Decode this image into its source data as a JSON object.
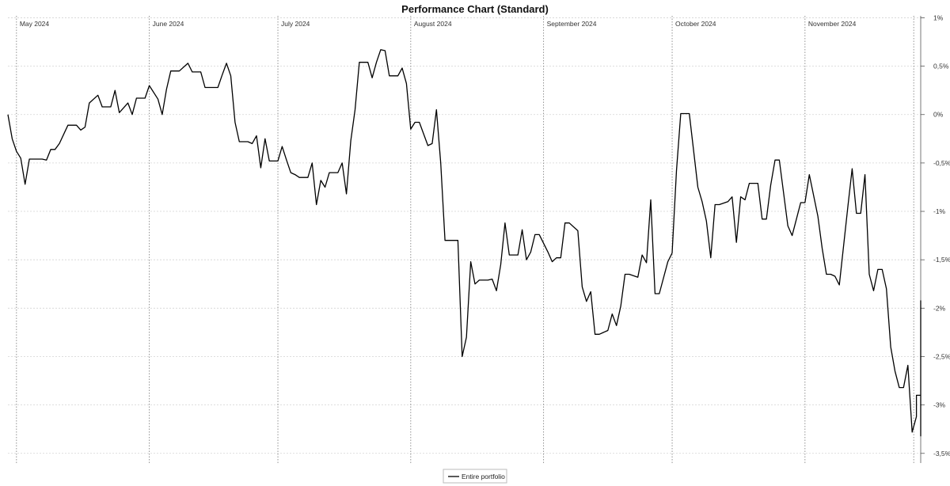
{
  "chart_data": {
    "type": "line",
    "title": "Performance Chart (Standard)",
    "xlabel": "",
    "ylabel": "",
    "x_range": [
      "2024-04-29",
      "2024-11-28"
    ],
    "ylim": [
      -3.6,
      1.02
    ],
    "y_ticks": [
      {
        "value": 1,
        "label": "1%"
      },
      {
        "value": 0.5,
        "label": "0,5%"
      },
      {
        "value": 0,
        "label": "0%"
      },
      {
        "value": -0.5,
        "label": "-0,5%"
      },
      {
        "value": -1,
        "label": "-1%"
      },
      {
        "value": -1.5,
        "label": "-1,5%"
      },
      {
        "value": -2,
        "label": "-2%"
      },
      {
        "value": -2.5,
        "label": "-2,5%"
      },
      {
        "value": -3,
        "label": "-3%"
      },
      {
        "value": -3.5,
        "label": "-3,5%"
      }
    ],
    "month_markers": [
      {
        "date": "2024-05-01",
        "label": "May 2024"
      },
      {
        "date": "2024-06-01",
        "label": "June 2024"
      },
      {
        "date": "2024-07-01",
        "label": "July 2024"
      },
      {
        "date": "2024-08-01",
        "label": "August 2024"
      },
      {
        "date": "2024-09-01",
        "label": "September 2024"
      },
      {
        "date": "2024-10-01",
        "label": "October 2024"
      },
      {
        "date": "2024-11-01",
        "label": "November 2024"
      }
    ],
    "grid": true,
    "legend_position": "bottom-center",
    "series": [
      {
        "name": "Entire portfolio",
        "color": "#000000",
        "points": [
          [
            "2024-04-29",
            0.0
          ],
          [
            "2024-04-30",
            -0.25
          ],
          [
            "2024-05-01",
            -0.38
          ],
          [
            "2024-05-02",
            -0.45
          ],
          [
            "2024-05-03",
            -0.72
          ],
          [
            "2024-05-04",
            -0.46
          ],
          [
            "2024-05-07",
            -0.46
          ],
          [
            "2024-05-08",
            -0.47
          ],
          [
            "2024-05-09",
            -0.36
          ],
          [
            "2024-05-10",
            -0.36
          ],
          [
            "2024-05-11",
            -0.3
          ],
          [
            "2024-05-13",
            -0.11
          ],
          [
            "2024-05-14",
            -0.11
          ],
          [
            "2024-05-15",
            -0.11
          ],
          [
            "2024-05-16",
            -0.16
          ],
          [
            "2024-05-17",
            -0.13
          ],
          [
            "2024-05-18",
            0.12
          ],
          [
            "2024-05-20",
            0.2
          ],
          [
            "2024-05-21",
            0.08
          ],
          [
            "2024-05-22",
            0.08
          ],
          [
            "2024-05-23",
            0.08
          ],
          [
            "2024-05-24",
            0.25
          ],
          [
            "2024-05-25",
            0.02
          ],
          [
            "2024-05-27",
            0.12
          ],
          [
            "2024-05-28",
            0.0
          ],
          [
            "2024-05-29",
            0.17
          ],
          [
            "2024-05-30",
            0.17
          ],
          [
            "2024-05-31",
            0.17
          ],
          [
            "2024-06-01",
            0.3
          ],
          [
            "2024-06-03",
            0.16
          ],
          [
            "2024-06-04",
            0.0
          ],
          [
            "2024-06-05",
            0.26
          ],
          [
            "2024-06-06",
            0.45
          ],
          [
            "2024-06-07",
            0.45
          ],
          [
            "2024-06-08",
            0.45
          ],
          [
            "2024-06-10",
            0.53
          ],
          [
            "2024-06-11",
            0.44
          ],
          [
            "2024-06-12",
            0.44
          ],
          [
            "2024-06-13",
            0.44
          ],
          [
            "2024-06-14",
            0.28
          ],
          [
            "2024-06-15",
            0.28
          ],
          [
            "2024-06-17",
            0.28
          ],
          [
            "2024-06-18",
            0.41
          ],
          [
            "2024-06-19",
            0.53
          ],
          [
            "2024-06-20",
            0.4
          ],
          [
            "2024-06-21",
            -0.08
          ],
          [
            "2024-06-22",
            -0.28
          ],
          [
            "2024-06-24",
            -0.28
          ],
          [
            "2024-06-25",
            -0.3
          ],
          [
            "2024-06-26",
            -0.22
          ],
          [
            "2024-06-27",
            -0.55
          ],
          [
            "2024-06-28",
            -0.25
          ],
          [
            "2024-06-29",
            -0.48
          ],
          [
            "2024-07-01",
            -0.48
          ],
          [
            "2024-07-02",
            -0.33
          ],
          [
            "2024-07-03",
            -0.47
          ],
          [
            "2024-07-04",
            -0.6
          ],
          [
            "2024-07-05",
            -0.62
          ],
          [
            "2024-07-06",
            -0.65
          ],
          [
            "2024-07-08",
            -0.65
          ],
          [
            "2024-07-09",
            -0.5
          ],
          [
            "2024-07-10",
            -0.93
          ],
          [
            "2024-07-11",
            -0.68
          ],
          [
            "2024-07-12",
            -0.75
          ],
          [
            "2024-07-13",
            -0.6
          ],
          [
            "2024-07-15",
            -0.6
          ],
          [
            "2024-07-16",
            -0.5
          ],
          [
            "2024-07-17",
            -0.82
          ],
          [
            "2024-07-18",
            -0.27
          ],
          [
            "2024-07-19",
            0.05
          ],
          [
            "2024-07-20",
            0.54
          ],
          [
            "2024-07-22",
            0.54
          ],
          [
            "2024-07-23",
            0.38
          ],
          [
            "2024-07-24",
            0.54
          ],
          [
            "2024-07-25",
            0.67
          ],
          [
            "2024-07-26",
            0.66
          ],
          [
            "2024-07-27",
            0.4
          ],
          [
            "2024-07-29",
            0.4
          ],
          [
            "2024-07-30",
            0.48
          ],
          [
            "2024-07-31",
            0.32
          ],
          [
            "2024-08-01",
            -0.15
          ],
          [
            "2024-08-02",
            -0.08
          ],
          [
            "2024-08-03",
            -0.08
          ],
          [
            "2024-08-05",
            -0.32
          ],
          [
            "2024-08-06",
            -0.3
          ],
          [
            "2024-08-07",
            0.05
          ],
          [
            "2024-08-08",
            -0.5
          ],
          [
            "2024-08-09",
            -1.3
          ],
          [
            "2024-08-10",
            -1.3
          ],
          [
            "2024-08-12",
            -1.3
          ],
          [
            "2024-08-13",
            -2.5
          ],
          [
            "2024-08-14",
            -2.3
          ],
          [
            "2024-08-15",
            -1.52
          ],
          [
            "2024-08-16",
            -1.75
          ],
          [
            "2024-08-17",
            -1.71
          ],
          [
            "2024-08-19",
            -1.71
          ],
          [
            "2024-08-20",
            -1.7
          ],
          [
            "2024-08-21",
            -1.82
          ],
          [
            "2024-08-22",
            -1.55
          ],
          [
            "2024-08-23",
            -1.12
          ],
          [
            "2024-08-24",
            -1.45
          ],
          [
            "2024-08-26",
            -1.45
          ],
          [
            "2024-08-27",
            -1.19
          ],
          [
            "2024-08-28",
            -1.5
          ],
          [
            "2024-08-29",
            -1.42
          ],
          [
            "2024-08-30",
            -1.24
          ],
          [
            "2024-08-31",
            -1.24
          ],
          [
            "2024-09-02",
            -1.42
          ],
          [
            "2024-09-03",
            -1.52
          ],
          [
            "2024-09-04",
            -1.48
          ],
          [
            "2024-09-05",
            -1.48
          ],
          [
            "2024-09-06",
            -1.12
          ],
          [
            "2024-09-07",
            -1.12
          ],
          [
            "2024-09-09",
            -1.2
          ],
          [
            "2024-09-10",
            -1.78
          ],
          [
            "2024-09-11",
            -1.93
          ],
          [
            "2024-09-12",
            -1.83
          ],
          [
            "2024-09-13",
            -2.27
          ],
          [
            "2024-09-14",
            -2.27
          ],
          [
            "2024-09-16",
            -2.23
          ],
          [
            "2024-09-17",
            -2.06
          ],
          [
            "2024-09-18",
            -2.18
          ],
          [
            "2024-09-19",
            -1.98
          ],
          [
            "2024-09-20",
            -1.65
          ],
          [
            "2024-09-21",
            -1.65
          ],
          [
            "2024-09-23",
            -1.68
          ],
          [
            "2024-09-24",
            -1.45
          ],
          [
            "2024-09-25",
            -1.53
          ],
          [
            "2024-09-26",
            -0.88
          ],
          [
            "2024-09-27",
            -1.85
          ],
          [
            "2024-09-28",
            -1.85
          ],
          [
            "2024-09-30",
            -1.52
          ],
          [
            "2024-10-01",
            -1.43
          ],
          [
            "2024-10-02",
            -0.58
          ],
          [
            "2024-10-03",
            0.01
          ],
          [
            "2024-10-04",
            0.01
          ],
          [
            "2024-10-05",
            0.01
          ],
          [
            "2024-10-07",
            -0.75
          ],
          [
            "2024-10-08",
            -0.9
          ],
          [
            "2024-10-09",
            -1.1
          ],
          [
            "2024-10-10",
            -1.48
          ],
          [
            "2024-10-11",
            -0.93
          ],
          [
            "2024-10-12",
            -0.93
          ],
          [
            "2024-10-14",
            -0.9
          ],
          [
            "2024-10-15",
            -0.85
          ],
          [
            "2024-10-16",
            -1.32
          ],
          [
            "2024-10-17",
            -0.85
          ],
          [
            "2024-10-18",
            -0.88
          ],
          [
            "2024-10-19",
            -0.71
          ],
          [
            "2024-10-21",
            -0.71
          ],
          [
            "2024-10-22",
            -1.08
          ],
          [
            "2024-10-23",
            -1.08
          ],
          [
            "2024-10-24",
            -0.73
          ],
          [
            "2024-10-25",
            -0.47
          ],
          [
            "2024-10-26",
            -0.47
          ],
          [
            "2024-10-28",
            -1.15
          ],
          [
            "2024-10-29",
            -1.25
          ],
          [
            "2024-10-30",
            -1.08
          ],
          [
            "2024-10-31",
            -0.91
          ],
          [
            "2024-11-01",
            -0.91
          ],
          [
            "2024-11-02",
            -0.62
          ],
          [
            "2024-11-04",
            -1.05
          ],
          [
            "2024-11-05",
            -1.38
          ],
          [
            "2024-11-06",
            -1.65
          ],
          [
            "2024-11-07",
            -1.65
          ],
          [
            "2024-11-08",
            -1.67
          ],
          [
            "2024-11-09",
            -1.76
          ],
          [
            "2024-11-11",
            -0.95
          ],
          [
            "2024-11-12",
            -0.56
          ],
          [
            "2024-11-13",
            -1.02
          ],
          [
            "2024-11-14",
            -1.02
          ],
          [
            "2024-11-15",
            -0.62
          ],
          [
            "2024-11-16",
            -1.65
          ],
          [
            "2024-11-17",
            -1.82
          ],
          [
            "2024-11-18",
            -1.6
          ],
          [
            "2024-11-19",
            -1.6
          ],
          [
            "2024-11-20",
            -1.8
          ],
          [
            "2024-11-21",
            -2.4
          ],
          [
            "2024-11-22",
            -2.65
          ],
          [
            "2024-11-23",
            -2.82
          ],
          [
            "2024-11-24",
            -2.82
          ],
          [
            "2024-11-25",
            -2.59
          ],
          [
            "2024-11-26",
            -3.28
          ],
          [
            "2024-11-27",
            -3.12
          ],
          [
            "2024-11-27",
            -2.9
          ],
          [
            "2024-11-28",
            -2.9
          ],
          [
            "2024-11-28",
            -3.32
          ],
          [
            "2024-11-28",
            -1.92
          ]
        ]
      }
    ]
  }
}
